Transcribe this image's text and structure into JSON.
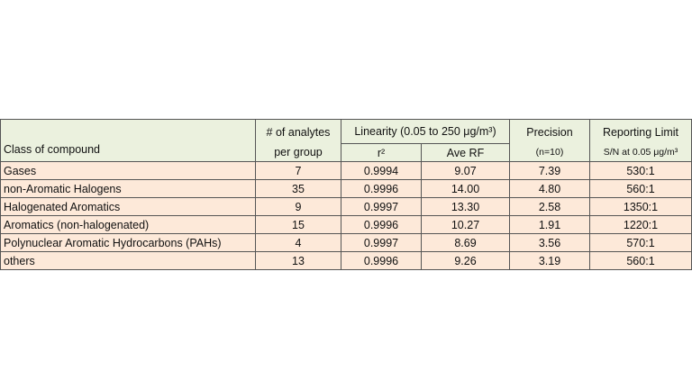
{
  "table": {
    "header": {
      "class": "Class of compound",
      "analytes_1": "# of analytes",
      "analytes_2": "per group",
      "linearity": "Linearity (0.05 to 250 μg/m³)",
      "r2": "r²",
      "ave_rf": "Ave RF",
      "precision": "Precision",
      "precision_n": "(n=10)",
      "reporting": "Reporting Limit",
      "reporting_sn": "S/N at 0.05 μg/m³"
    },
    "rows": [
      [
        "Gases",
        "7",
        "0.9994",
        "9.07",
        "7.39",
        "530:1"
      ],
      [
        "non-Aromatic Halogens",
        "35",
        "0.9996",
        "14.00",
        "4.80",
        "560:1"
      ],
      [
        "Halogenated Aromatics",
        "9",
        "0.9997",
        "13.30",
        "2.58",
        "1350:1"
      ],
      [
        "Aromatics (non-halogenated)",
        "15",
        "0.9996",
        "10.27",
        "1.91",
        "1220:1"
      ],
      [
        "Polynuclear Aromatic Hydrocarbons (PAHs)",
        "4",
        "0.9997",
        "8.69",
        "3.56",
        "570:1"
      ],
      [
        "others",
        "13",
        "0.9996",
        "9.26",
        "3.19",
        "560:1"
      ]
    ]
  }
}
